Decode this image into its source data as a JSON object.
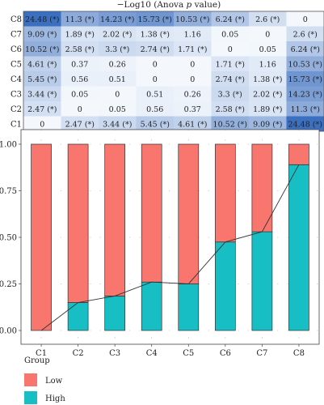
{
  "chart_data": [
    {
      "type": "heatmap",
      "title": "−Log10 (Anova ",
      "title_italic": "p",
      "title_end": " value)",
      "rows": [
        "C8",
        "C7",
        "C6",
        "C5",
        "C4",
        "C3",
        "C2",
        "C1"
      ],
      "columns": [
        "C1",
        "C2",
        "C3",
        "C4",
        "C5",
        "C6",
        "C7",
        "C8"
      ],
      "values": [
        [
          24.48,
          11.3,
          14.23,
          15.73,
          10.53,
          6.24,
          2.6,
          0
        ],
        [
          9.09,
          1.89,
          2.02,
          1.38,
          1.16,
          0.05,
          0,
          2.6
        ],
        [
          10.52,
          2.58,
          3.3,
          2.74,
          1.71,
          0,
          0.05,
          6.24
        ],
        [
          4.61,
          0.37,
          0.26,
          0,
          0,
          1.71,
          1.16,
          10.53
        ],
        [
          5.45,
          0.56,
          0.51,
          0,
          0,
          2.74,
          1.38,
          15.73
        ],
        [
          3.44,
          0.05,
          0,
          0.51,
          0.26,
          3.3,
          2.02,
          14.23
        ],
        [
          2.47,
          0,
          0.05,
          0.56,
          0.37,
          2.58,
          1.89,
          11.3
        ],
        [
          0,
          2.47,
          3.44,
          5.45,
          4.61,
          10.52,
          9.09,
          24.48
        ]
      ],
      "labels": [
        [
          "24.48 (*)",
          "11.3 (*)",
          "14.23 (*)",
          "15.73 (*)",
          "10.53 (*)",
          "6.24 (*)",
          "2.6 (*)",
          "0"
        ],
        [
          "9.09 (*)",
          "1.89 (*)",
          "2.02 (*)",
          "1.38 (*)",
          "1.16",
          "0.05",
          "0",
          "2.6 (*)"
        ],
        [
          "10.52 (*)",
          "2.58 (*)",
          "3.3 (*)",
          "2.74 (*)",
          "1.71 (*)",
          "0",
          "0.05",
          "6.24 (*)"
        ],
        [
          "4.61 (*)",
          "0.37",
          "0.26",
          "0",
          "0",
          "1.71 (*)",
          "1.16",
          "10.53 (*)"
        ],
        [
          "5.45 (*)",
          "0.56",
          "0.51",
          "0",
          "0",
          "2.74 (*)",
          "1.38 (*)",
          "15.73 (*)"
        ],
        [
          "3.44 (*)",
          "0.05",
          "0",
          "0.51",
          "0.26",
          "3.3 (*)",
          "2.02 (*)",
          "14.23 (*)"
        ],
        [
          "2.47 (*)",
          "0",
          "0.05",
          "0.56",
          "0.37",
          "2.58 (*)",
          "1.89 (*)",
          "11.3 (*)"
        ],
        [
          "0",
          "2.47 (*)",
          "3.44 (*)",
          "5.45 (*)",
          "4.61 (*)",
          "10.52 (*)",
          "9.09 (*)",
          "24.48 (*)"
        ]
      ],
      "color_low": "#ffffff",
      "color_high": "#3b6fbf",
      "value_max": 24.48
    },
    {
      "type": "bar",
      "stacked": true,
      "categories": [
        "C1",
        "C2",
        "C3",
        "C4",
        "C5",
        "C6",
        "C7",
        "C8"
      ],
      "series": [
        {
          "name": "High",
          "color": "#17bec4",
          "values": [
            0.0,
            0.15,
            0.185,
            0.26,
            0.25,
            0.475,
            0.53,
            0.89
          ]
        },
        {
          "name": "Low",
          "color": "#f8766d",
          "values": [
            1.0,
            0.85,
            0.815,
            0.74,
            0.75,
            0.525,
            0.47,
            0.11
          ]
        }
      ],
      "trend_line": {
        "series": "High",
        "color": "#333333"
      },
      "ylim": [
        0,
        1
      ],
      "yticks": [
        "0.00",
        "0.25",
        "0.50",
        "0.75",
        "1.00"
      ],
      "ytick_values": [
        0,
        0.25,
        0.5,
        0.75,
        1.0
      ],
      "grid": true,
      "legend": {
        "title": "Group",
        "placement": "bottom-left",
        "entries": [
          {
            "name": "Low",
            "color": "#f8766d"
          },
          {
            "name": "High",
            "color": "#17bec4"
          }
        ]
      }
    }
  ]
}
